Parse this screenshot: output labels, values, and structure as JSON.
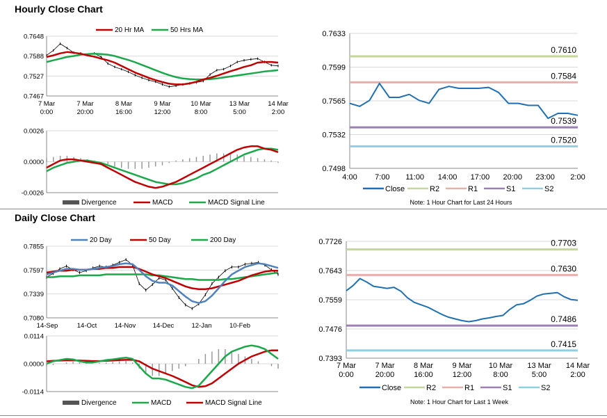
{
  "sections": {
    "hourly_title": "Hourly Close Chart",
    "daily_title": "Daily Close Chart"
  },
  "colors": {
    "red": "#c00000",
    "green": "#1aa84a",
    "blue": "#4f81bd",
    "close_blue": "#1f6fb2",
    "gray": "#777777",
    "r2": "#c4d79b",
    "r1": "#e6b0aa",
    "s1": "#9b7fb5",
    "s2": "#8fcfe0"
  },
  "chart_data": [
    {
      "id": "hourly_price",
      "type": "line",
      "legend": [
        "20 Hr MA",
        "50 Hrs MA"
      ],
      "ylim": [
        0.7467,
        0.7648
      ],
      "yticks": [
        "0.7648",
        "0.7588",
        "0.7527",
        "0.7467"
      ],
      "xticks": [
        [
          "7 Mar",
          "0:00"
        ],
        [
          "7 Mar",
          "20:00"
        ],
        [
          "8 Mar",
          "16:00"
        ],
        [
          "9 Mar",
          "12:00"
        ],
        [
          "10 Mar",
          "8:00"
        ],
        [
          "13 Mar",
          "5:00"
        ],
        [
          "14 Mar",
          "2:00"
        ]
      ],
      "price_close": [
        0.759,
        0.7605,
        0.7625,
        0.7612,
        0.7598,
        0.7596,
        0.7592,
        0.7596,
        0.7585,
        0.7565,
        0.7555,
        0.7548,
        0.754,
        0.753,
        0.7522,
        0.7515,
        0.751,
        0.7502,
        0.7495,
        0.7498,
        0.7502,
        0.7505,
        0.7508,
        0.7512,
        0.7532,
        0.7545,
        0.7548,
        0.7558,
        0.757,
        0.7575,
        0.7578,
        0.758,
        0.757,
        0.756,
        0.7558
      ],
      "series": [
        {
          "name": "20 Hr MA",
          "values": [
            0.7585,
            0.759,
            0.7596,
            0.76,
            0.7598,
            0.7595,
            0.759,
            0.7586,
            0.758,
            0.7575,
            0.7568,
            0.7558,
            0.7548,
            0.7538,
            0.753,
            0.7522,
            0.7515,
            0.7509,
            0.7504,
            0.7502,
            0.7502,
            0.7505,
            0.751,
            0.7517,
            0.7522,
            0.7528,
            0.7535,
            0.7542,
            0.7548,
            0.7555,
            0.756,
            0.7568,
            0.757,
            0.757,
            0.7568
          ]
        },
        {
          "name": "50 Hrs MA",
          "values": [
            0.757,
            0.7575,
            0.758,
            0.7585,
            0.7588,
            0.7592,
            0.7594,
            0.7595,
            0.7594,
            0.7592,
            0.7588,
            0.7582,
            0.7576,
            0.7569,
            0.7561,
            0.7553,
            0.7545,
            0.7537,
            0.753,
            0.7524,
            0.752,
            0.7518,
            0.7517,
            0.7517,
            0.7518,
            0.752,
            0.7523,
            0.7526,
            0.7529,
            0.7532,
            0.7535,
            0.7538,
            0.7541,
            0.7543,
            0.7545
          ]
        }
      ]
    },
    {
      "id": "hourly_macd",
      "type": "line",
      "legend": [
        "Divergence",
        "MACD",
        "MACD Signal Line"
      ],
      "ylim": [
        -0.0026,
        0.0026
      ],
      "yticks": [
        "0.0026",
        "0.0000",
        "-0.0026"
      ],
      "divergence": [
        0.0003,
        0.0004,
        0.0005,
        0.0005,
        0.0004,
        0.0003,
        0.0002,
        0.0001,
        0.0,
        -0.0002,
        -0.0004,
        -0.0005,
        -0.0006,
        -0.0006,
        -0.0006,
        -0.0005,
        -0.0004,
        -0.0003,
        -0.0001,
        0.0001,
        0.0002,
        0.0003,
        0.0004,
        0.0005,
        0.0006,
        0.0007,
        0.0007,
        0.0007,
        0.0006,
        0.0005,
        0.0004,
        0.0003,
        0.0002,
        0.0001,
        -0.0001
      ],
      "series": [
        {
          "name": "MACD",
          "values": [
            -0.0005,
            -0.0002,
            0.0001,
            0.0002,
            0.0002,
            0.0001,
            0.0,
            -0.0001,
            -0.0002,
            -0.0005,
            -0.0008,
            -0.0011,
            -0.0014,
            -0.0017,
            -0.0019,
            -0.0021,
            -0.0022,
            -0.0021,
            -0.0019,
            -0.0017,
            -0.0014,
            -0.0011,
            -0.0008,
            -0.0005,
            -0.0002,
            0.0001,
            0.0004,
            0.0007,
            0.001,
            0.0012,
            0.0013,
            0.0013,
            0.0011,
            0.001,
            0.0008
          ]
        },
        {
          "name": "MACD Signal Line",
          "values": [
            -0.0008,
            -0.0005,
            -0.0003,
            -0.0001,
            0.0,
            0.0001,
            0.0001,
            0.0,
            -0.0001,
            -0.0003,
            -0.0005,
            -0.0007,
            -0.0009,
            -0.0011,
            -0.0013,
            -0.0015,
            -0.0017,
            -0.0018,
            -0.0019,
            -0.0019,
            -0.0018,
            -0.0016,
            -0.0014,
            -0.0011,
            -0.0009,
            -0.0006,
            -0.0003,
            0.0,
            0.0003,
            0.0006,
            0.0008,
            0.001,
            0.0011,
            0.0011,
            0.001
          ]
        }
      ]
    },
    {
      "id": "hourly_close_24h",
      "type": "line",
      "ylim": [
        0.7498,
        0.7633
      ],
      "yticks": [
        "0.7633",
        "0.7599",
        "0.7565",
        "0.7532",
        "0.7498"
      ],
      "x": [
        "4:00",
        "5:00",
        "6:00",
        "7:00",
        "8:00",
        "9:00",
        "10:00",
        "11:00",
        "12:00",
        "13:00",
        "14:00",
        "15:00",
        "16:00",
        "17:00",
        "18:00",
        "19:00",
        "20:00",
        "21:00",
        "22:00",
        "23:00",
        "0:00",
        "1:00",
        "2:00",
        "3:00"
      ],
      "xticks": [
        "4:00",
        "7:00",
        "11:00",
        "14:00",
        "17:00",
        "20:00",
        "23:00",
        "2:00"
      ],
      "series": [
        {
          "name": "Close",
          "values": [
            0.7563,
            0.756,
            0.7566,
            0.7583,
            0.7569,
            0.7569,
            0.7572,
            0.7566,
            0.7563,
            0.7577,
            0.758,
            0.7578,
            0.7578,
            0.7578,
            0.7579,
            0.7574,
            0.7563,
            0.7563,
            0.7561,
            0.7561,
            0.7548,
            0.7553,
            0.7553,
            0.7551
          ]
        }
      ],
      "levels": [
        {
          "name": "R2",
          "value": 0.761,
          "label": "0.7610"
        },
        {
          "name": "R1",
          "value": 0.7584,
          "label": "0.7584"
        },
        {
          "name": "S1",
          "value": 0.7539,
          "label": "0.7539"
        },
        {
          "name": "S2",
          "value": 0.752,
          "label": "0.7520"
        }
      ],
      "legend": [
        "Close",
        "R2",
        "R1",
        "S1",
        "S2"
      ],
      "note": "Note: 1 Hour Chart for Last 24 Hours"
    },
    {
      "id": "daily_price",
      "type": "line",
      "legend": [
        "20 Day",
        "50 Day",
        "200 Day"
      ],
      "ylim": [
        0.708,
        0.7855
      ],
      "yticks": [
        "0.7855",
        "0.7597",
        "0.7339",
        "0.7080"
      ],
      "xticks": [
        "14-Sep",
        "14-Oct",
        "14-Nov",
        "14-Dec",
        "12-Jan",
        "10-Feb"
      ],
      "price_close": [
        0.752,
        0.756,
        0.761,
        0.764,
        0.76,
        0.757,
        0.759,
        0.762,
        0.764,
        0.763,
        0.765,
        0.768,
        0.771,
        0.765,
        0.745,
        0.738,
        0.744,
        0.751,
        0.749,
        0.74,
        0.73,
        0.722,
        0.718,
        0.723,
        0.733,
        0.745,
        0.752,
        0.759,
        0.763,
        0.763,
        0.766,
        0.767,
        0.768,
        0.765,
        0.76,
        0.755
      ],
      "series": [
        {
          "name": "20 Day",
          "values": [
            0.755,
            0.757,
            0.759,
            0.761,
            0.761,
            0.76,
            0.76,
            0.761,
            0.762,
            0.763,
            0.764,
            0.766,
            0.767,
            0.766,
            0.76,
            0.753,
            0.748,
            0.746,
            0.746,
            0.743,
            0.737,
            0.731,
            0.726,
            0.724,
            0.726,
            0.732,
            0.74,
            0.748,
            0.755,
            0.759,
            0.763,
            0.765,
            0.767,
            0.766,
            0.764,
            0.762
          ]
        },
        {
          "name": "50 Day",
          "values": [
            0.757,
            0.758,
            0.759,
            0.759,
            0.76,
            0.76,
            0.76,
            0.761,
            0.761,
            0.762,
            0.762,
            0.763,
            0.763,
            0.763,
            0.761,
            0.758,
            0.755,
            0.753,
            0.751,
            0.748,
            0.745,
            0.742,
            0.74,
            0.739,
            0.739,
            0.74,
            0.742,
            0.744,
            0.746,
            0.748,
            0.751,
            0.754,
            0.756,
            0.758,
            0.759,
            0.759
          ]
        },
        {
          "name": "200 Day",
          "values": [
            0.752,
            0.752,
            0.753,
            0.753,
            0.753,
            0.754,
            0.754,
            0.754,
            0.754,
            0.755,
            0.755,
            0.755,
            0.755,
            0.755,
            0.755,
            0.755,
            0.754,
            0.754,
            0.753,
            0.752,
            0.751,
            0.75,
            0.75,
            0.749,
            0.749,
            0.749,
            0.749,
            0.75,
            0.75,
            0.751,
            0.752,
            0.753,
            0.754,
            0.755,
            0.756,
            0.757
          ]
        }
      ]
    },
    {
      "id": "daily_macd",
      "type": "line",
      "legend": [
        "Divergence",
        "MACD",
        "MACD Signal Line"
      ],
      "ylim": [
        -0.0114,
        0.0114
      ],
      "yticks": [
        "0.0114",
        "0.0000",
        "-0.0114"
      ],
      "divergence": [
        -0.001,
        -0.0005,
        0.0,
        0.0005,
        0.0008,
        0.0005,
        0.0002,
        0.0,
        0.0003,
        0.0005,
        0.0007,
        0.001,
        0.0012,
        0.0005,
        -0.002,
        -0.004,
        -0.005,
        -0.005,
        -0.004,
        -0.003,
        -0.002,
        -0.001,
        0.0,
        0.002,
        0.004,
        0.005,
        0.006,
        0.006,
        0.005,
        0.004,
        0.003,
        0.002,
        0.001,
        0.0,
        -0.001,
        -0.002
      ],
      "series": [
        {
          "name": "MACD",
          "values": [
            0.0,
            0.001,
            0.0015,
            0.002,
            0.0018,
            0.001,
            0.0005,
            0.0005,
            0.001,
            0.0015,
            0.0018,
            0.0022,
            0.0025,
            0.002,
            -0.001,
            -0.004,
            -0.006,
            -0.006,
            -0.0065,
            -0.0075,
            -0.0085,
            -0.0095,
            -0.01,
            -0.009,
            -0.006,
            -0.003,
            0.0,
            0.003,
            0.005,
            0.006,
            0.007,
            0.0075,
            0.007,
            0.006,
            0.004,
            0.002
          ]
        },
        {
          "name": "MACD Signal Line",
          "values": [
            0.001,
            0.0012,
            0.0013,
            0.0014,
            0.0014,
            0.0013,
            0.0012,
            0.0011,
            0.0011,
            0.0012,
            0.0013,
            0.0015,
            0.0016,
            0.0016,
            0.001,
            -0.0005,
            -0.002,
            -0.003,
            -0.004,
            -0.005,
            -0.0062,
            -0.0075,
            -0.0088,
            -0.0095,
            -0.0092,
            -0.008,
            -0.006,
            -0.004,
            -0.002,
            0.0,
            0.0015,
            0.003,
            0.004,
            0.005,
            0.0055,
            0.0055
          ]
        }
      ]
    },
    {
      "id": "hourly_close_week",
      "type": "line",
      "ylim": [
        0.7393,
        0.7726
      ],
      "yticks": [
        "0.7726",
        "0.7643",
        "0.7559",
        "0.7476",
        "0.7393"
      ],
      "xticks": [
        [
          "7 Mar",
          "0:00"
        ],
        [
          "7 Mar",
          "20:00"
        ],
        [
          "8 Mar",
          "16:00"
        ],
        [
          "9 Mar",
          "12:00"
        ],
        [
          "10 Mar",
          "8:00"
        ],
        [
          "13 Mar",
          "5:00"
        ],
        [
          "14 Mar",
          "2:00"
        ]
      ],
      "series": [
        {
          "name": "Close",
          "values": [
            0.7585,
            0.76,
            0.762,
            0.761,
            0.7598,
            0.7595,
            0.7592,
            0.7595,
            0.7584,
            0.7565,
            0.7552,
            0.7545,
            0.7538,
            0.7528,
            0.7518,
            0.751,
            0.7505,
            0.75,
            0.7497,
            0.75,
            0.7505,
            0.7508,
            0.7512,
            0.7515,
            0.7532,
            0.7545,
            0.7548,
            0.7558,
            0.757,
            0.7576,
            0.7578,
            0.758,
            0.7568,
            0.756,
            0.7558
          ]
        }
      ],
      "levels": [
        {
          "name": "R2",
          "value": 0.7703,
          "label": "0.7703"
        },
        {
          "name": "R1",
          "value": 0.763,
          "label": "0.7630"
        },
        {
          "name": "S1",
          "value": 0.7486,
          "label": "0.7486"
        },
        {
          "name": "S2",
          "value": 0.7415,
          "label": "0.7415"
        }
      ],
      "legend": [
        "Close",
        "R2",
        "R1",
        "S1",
        "S2"
      ],
      "note": "Note: 1 Hour Chart for Last 1 Week"
    }
  ]
}
